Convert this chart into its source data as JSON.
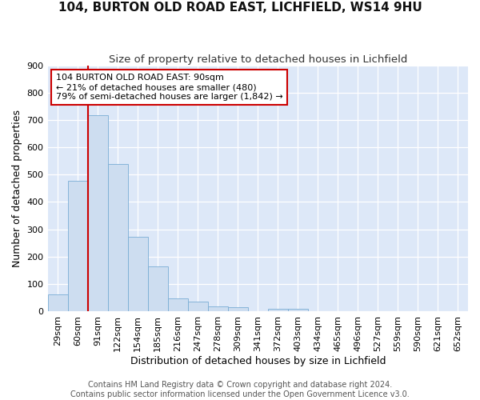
{
  "title_line1": "104, BURTON OLD ROAD EAST, LICHFIELD, WS14 9HU",
  "title_line2": "Size of property relative to detached houses in Lichfield",
  "xlabel": "Distribution of detached houses by size in Lichfield",
  "ylabel": "Number of detached properties",
  "bar_color": "#cdddf0",
  "bar_edge_color": "#7aadd4",
  "bg_color": "#dde8f8",
  "grid_color": "#ffffff",
  "categories": [
    "29sqm",
    "60sqm",
    "91sqm",
    "122sqm",
    "154sqm",
    "185sqm",
    "216sqm",
    "247sqm",
    "278sqm",
    "309sqm",
    "341sqm",
    "372sqm",
    "403sqm",
    "434sqm",
    "465sqm",
    "496sqm",
    "527sqm",
    "559sqm",
    "590sqm",
    "621sqm",
    "652sqm"
  ],
  "values": [
    62,
    478,
    716,
    538,
    272,
    165,
    48,
    35,
    17,
    14,
    0,
    10,
    10,
    0,
    0,
    0,
    0,
    0,
    0,
    0,
    0
  ],
  "vline_index": 2,
  "annotation_text": "104 BURTON OLD ROAD EAST: 90sqm\n← 21% of detached houses are smaller (480)\n79% of semi-detached houses are larger (1,842) →",
  "annotation_box_color": "#ffffff",
  "annotation_box_edge_color": "#cc0000",
  "vline_color": "#cc0000",
  "ylim": [
    0,
    900
  ],
  "yticks": [
    0,
    100,
    200,
    300,
    400,
    500,
    600,
    700,
    800,
    900
  ],
  "footer_line1": "Contains HM Land Registry data © Crown copyright and database right 2024.",
  "footer_line2": "Contains public sector information licensed under the Open Government Licence v3.0.",
  "title_fontsize": 11,
  "subtitle_fontsize": 9.5,
  "axis_label_fontsize": 9,
  "tick_fontsize": 8,
  "annotation_fontsize": 8,
  "footer_fontsize": 7
}
